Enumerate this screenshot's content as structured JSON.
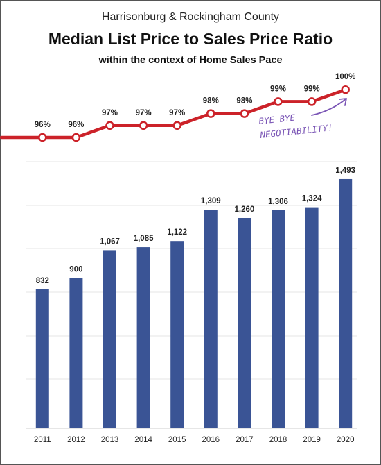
{
  "header": {
    "supertitle": "Harrisonburg & Rockingham County",
    "title": "Median List Price to Sales Price Ratio",
    "subtitle": "within the context of Home Sales Pace"
  },
  "annotation": {
    "line1": "BYE BYE",
    "line2": "NEGOTIABILITY!",
    "color": "#7a55b5"
  },
  "colors": {
    "bar": "#3a5495",
    "line": "#cc2229"
  },
  "chart_data": {
    "type": "bar",
    "title": "Median List Price to Sales Price Ratio",
    "categories": [
      "2011",
      "2012",
      "2013",
      "2014",
      "2015",
      "2016",
      "2017",
      "2018",
      "2019",
      "2020"
    ],
    "series": [
      {
        "type": "bar",
        "values": [
          832,
          900,
          1067,
          1085,
          1122,
          1309,
          1260,
          1306,
          1324,
          1493
        ],
        "value_labels": [
          "832",
          "900",
          "1,067",
          "1,085",
          "1,122",
          "1,309",
          "1,260",
          "1,306",
          "1,324",
          "1,493"
        ]
      },
      {
        "type": "line",
        "values": [
          96,
          96,
          97,
          97,
          97,
          98,
          98,
          99,
          99,
          100
        ],
        "value_labels": [
          "96%",
          "96%",
          "97%",
          "97%",
          "97%",
          "98%",
          "98%",
          "99%",
          "99%",
          "100%"
        ]
      }
    ],
    "ylim": [
      0,
      1600
    ],
    "grid": true
  }
}
